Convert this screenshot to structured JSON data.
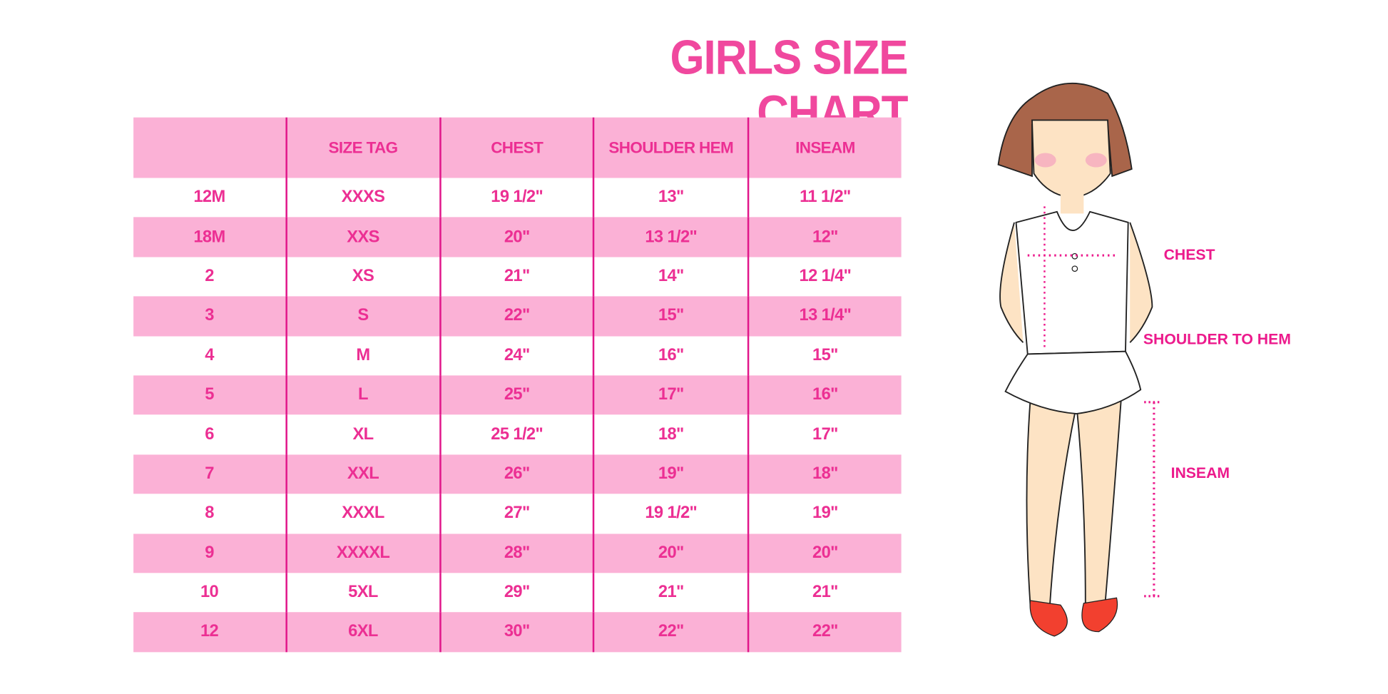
{
  "title": "GIRLS SIZE CHART",
  "table": {
    "headers": [
      "",
      "SIZE TAG",
      "CHEST",
      "SHOULDER HEM",
      "INSEAM"
    ],
    "rows": [
      [
        "12M",
        "XXXS",
        "19 1/2\"",
        "13\"",
        "11 1/2\""
      ],
      [
        "18M",
        "XXS",
        "20\"",
        "13 1/2\"",
        "12\""
      ],
      [
        "2",
        "XS",
        "21\"",
        "14\"",
        "12 1/4\""
      ],
      [
        "3",
        "S",
        "22\"",
        "15\"",
        "13 1/4\""
      ],
      [
        "4",
        "M",
        "24\"",
        "16\"",
        "15\""
      ],
      [
        "5",
        "L",
        "25\"",
        "17\"",
        "16\""
      ],
      [
        "6",
        "XL",
        "25 1/2\"",
        "18\"",
        "17\""
      ],
      [
        "7",
        "XXL",
        "26\"",
        "19\"",
        "18\""
      ],
      [
        "8",
        "XXXL",
        "27\"",
        "19 1/2\"",
        "19\""
      ],
      [
        "9",
        "XXXXL",
        "28\"",
        "20\"",
        "20\""
      ],
      [
        "10",
        "5XL",
        "29\"",
        "21\"",
        "21\""
      ],
      [
        "12",
        "6XL",
        "30\"",
        "22\"",
        "22\""
      ]
    ]
  },
  "figure": {
    "labels": {
      "chest": "CHEST",
      "shoulder_to_hem": "SHOULDER TO HEM",
      "inseam": "INSEAM"
    }
  },
  "colors": {
    "accent": "#ec2f93",
    "row_pink": "#fbb1d6"
  }
}
